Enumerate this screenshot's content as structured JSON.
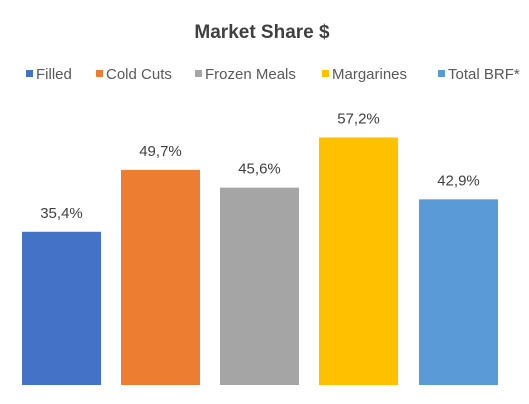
{
  "chart_data": {
    "type": "bar",
    "title": "Market Share $",
    "categories": [
      "Filled",
      "Cold Cuts",
      "Frozen Meals",
      "Margarines",
      "Total BRF*"
    ],
    "values": [
      35.4,
      49.7,
      45.6,
      57.2,
      42.9
    ],
    "value_labels": [
      "35,4%",
      "49,7%",
      "45,6%",
      "57,2%",
      "42,9%"
    ],
    "colors": [
      "#4472c4",
      "#ed7d31",
      "#a5a5a5",
      "#ffc000",
      "#5b9bd5"
    ],
    "legend": [
      "Filled",
      "Cold Cuts",
      "Frozen Meals",
      "Margarines",
      "Total BRF*"
    ],
    "legend_position": "top",
    "ylim": [
      0,
      64
    ],
    "grid": false,
    "xlabel": "",
    "ylabel": ""
  }
}
